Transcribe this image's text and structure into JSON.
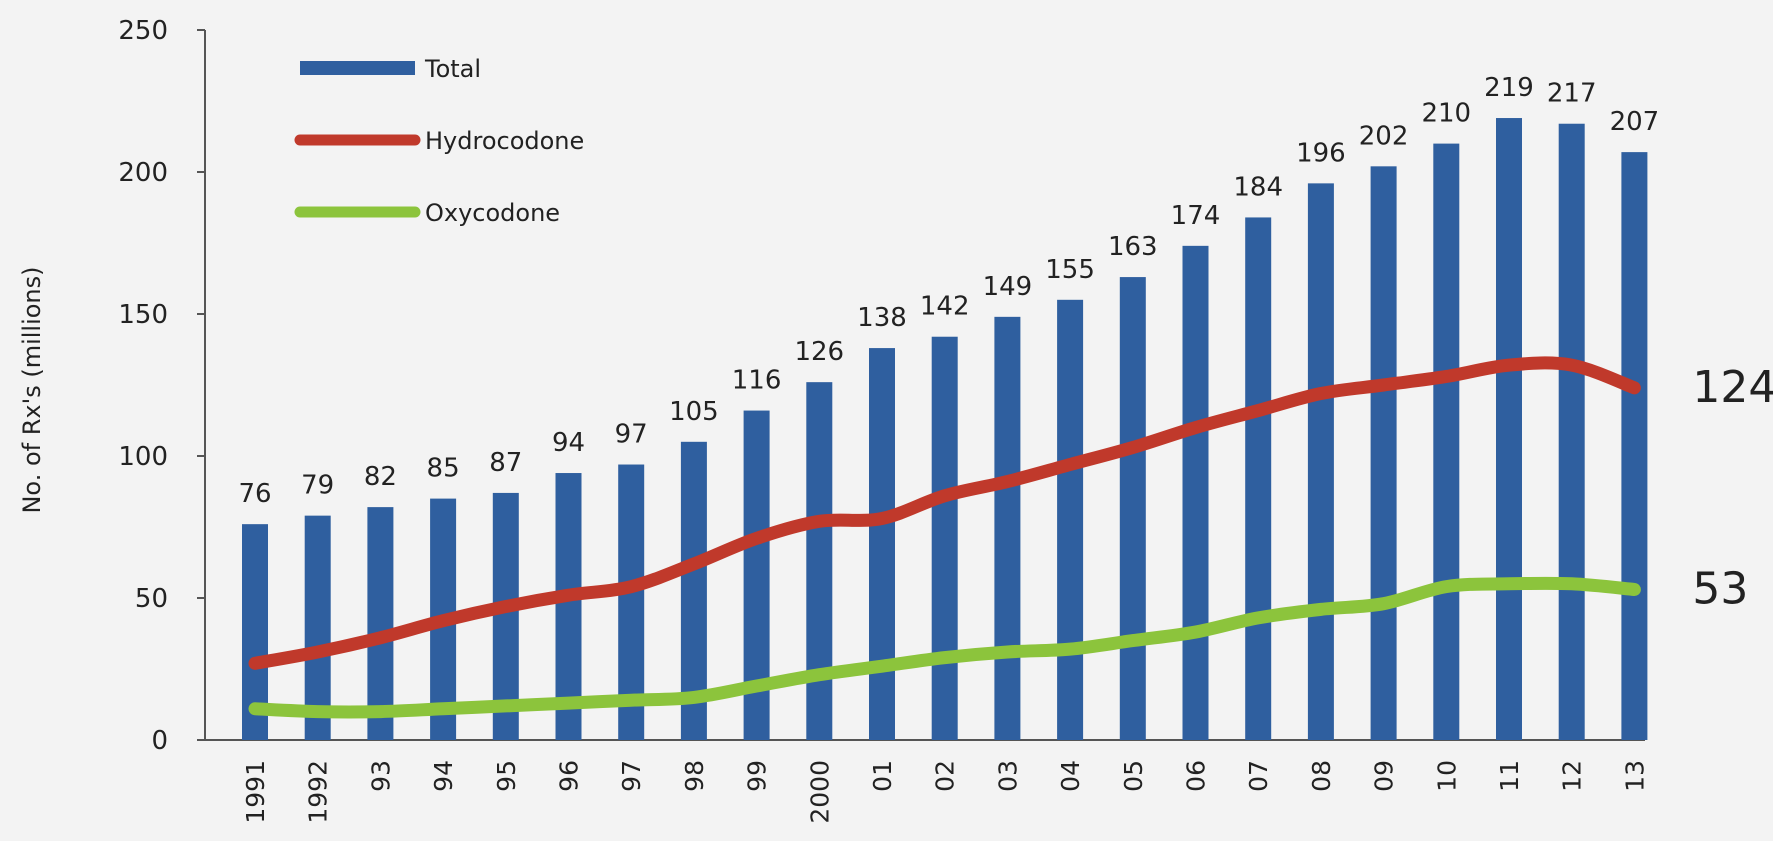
{
  "chart_data": {
    "type": "bar",
    "title": "",
    "xlabel": "",
    "ylabel": "No. of Rx's (millions)",
    "ylim": [
      0,
      250
    ],
    "yticks": [
      0,
      50,
      100,
      150,
      200,
      250
    ],
    "grid": false,
    "legend_position": "top-left",
    "categories": [
      "1991",
      "1992",
      "93",
      "94",
      "95",
      "96",
      "97",
      "98",
      "99",
      "2000",
      "01",
      "02",
      "03",
      "04",
      "05",
      "06",
      "07",
      "08",
      "09",
      "10",
      "11",
      "12",
      "13"
    ],
    "series": [
      {
        "name": "Total",
        "type": "bar",
        "color": "#2f5f9f",
        "values": [
          76,
          79,
          82,
          85,
          87,
          94,
          97,
          105,
          116,
          126,
          138,
          142,
          149,
          155,
          163,
          174,
          184,
          196,
          202,
          210,
          219,
          217,
          207
        ],
        "data_labels": [
          "76",
          "79",
          "82",
          "85",
          "87",
          "94",
          "97",
          "105",
          "116",
          "126",
          "138",
          "142",
          "149",
          "155",
          "163",
          "174",
          "184",
          "196",
          "202",
          "210",
          "219",
          "217",
          "207"
        ]
      },
      {
        "name": "Hydrocodone",
        "type": "line",
        "color": "#c0392b",
        "values": [
          27,
          31,
          36,
          42,
          47,
          51,
          54,
          62,
          71,
          77,
          78,
          86,
          91,
          97,
          103,
          110,
          116,
          122,
          125,
          128,
          132,
          132,
          124
        ],
        "end_label": "124"
      },
      {
        "name": "Oxycodone",
        "type": "line",
        "color": "#8cc43c",
        "values": [
          11,
          10,
          10,
          11,
          12,
          13,
          14,
          15,
          19,
          23,
          26,
          29,
          31,
          32,
          35,
          38,
          43,
          46,
          48,
          54,
          55,
          55,
          53
        ],
        "end_label": "53"
      }
    ]
  }
}
